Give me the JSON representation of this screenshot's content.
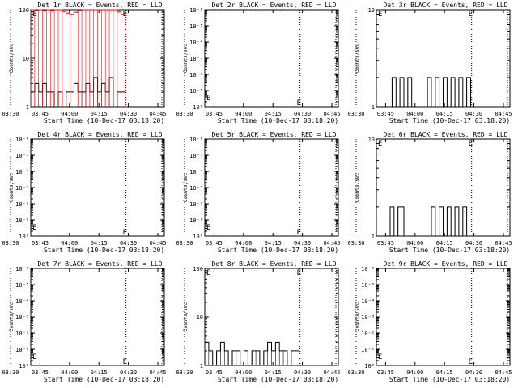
{
  "ylabel": "Counts/sec",
  "xlabel": "Start Time (10-Dec-17 03:18:20)",
  "x_ticks": [
    "03:30",
    "03:45",
    "04:00",
    "04:15",
    "04:30",
    "04:45"
  ],
  "marker_label": "E",
  "colors": {
    "events": "#000000",
    "lld": "#ff0000",
    "background": "#ffffff"
  },
  "chart_data": [
    {
      "type": "line",
      "title": "Det 1r BLACK = Events, RED = LLD",
      "xlabel": "Start Time (10-Dec-17 03:18:20)",
      "ylabel": "Counts/sec",
      "yscale": "log",
      "ylim": [
        1,
        100
      ],
      "y_ticks": [
        "1",
        "10",
        "100"
      ],
      "xlim_min": [
        22,
        90
      ],
      "x_ticks_min": [
        11.7,
        26.7,
        41.7,
        56.7,
        71.7,
        86.7
      ],
      "event_marker_min": 70.5,
      "series": [
        {
          "name": "BLACK = Events",
          "x": [
            22,
            24,
            26,
            28,
            30,
            32,
            34,
            36,
            38,
            40,
            42,
            44,
            46,
            48,
            50,
            52,
            54,
            56,
            58,
            60,
            62,
            64,
            66,
            68,
            70
          ],
          "y": [
            2,
            3,
            2,
            3,
            2,
            2,
            1,
            2,
            1,
            2,
            2,
            3,
            2,
            2,
            3,
            2,
            4,
            2,
            3,
            2,
            4,
            1,
            2,
            2,
            1
          ]
        },
        {
          "name": "RED = LLD",
          "x": [
            22,
            24,
            26,
            28,
            30,
            32,
            34,
            36,
            38,
            40,
            42,
            44,
            46,
            48,
            50,
            52,
            54,
            56,
            58,
            60,
            62,
            64,
            66,
            68,
            70
          ],
          "y": [
            100,
            95,
            100,
            96,
            100,
            98,
            100,
            100,
            92,
            85,
            80,
            88,
            95,
            100,
            100,
            100,
            100,
            100,
            100,
            100,
            100,
            100,
            90,
            80,
            85
          ]
        }
      ]
    },
    {
      "type": "line",
      "title": "Det 2r BLACK = Events, RED = LLD",
      "xlabel": "Start Time (10-Dec-17 03:18:20)",
      "ylabel": "Counts/sec",
      "yscale": "log",
      "ylim": [
        1,
        1000000
      ],
      "y_ticks": [
        "10⁰",
        "10⁻¹",
        "10⁻²",
        "10⁻³",
        "10⁻⁴",
        "10⁻⁵",
        "10⁻⁶"
      ],
      "xlim_min": [
        22,
        90
      ],
      "x_ticks_min": [
        11.7,
        26.7,
        41.7,
        56.7,
        71.7,
        86.7
      ],
      "event_marker_min": 70.5,
      "series": []
    },
    {
      "type": "line",
      "title": "Det 3r BLACK = Events, RED = LLD",
      "xlabel": "Start Time (10-Dec-17 03:18:20)",
      "ylabel": "Counts/sec",
      "yscale": "log",
      "ylim": [
        1,
        10
      ],
      "y_ticks": [
        "1",
        "10"
      ],
      "xlim_min": [
        22,
        90
      ],
      "x_ticks_min": [
        11.7,
        26.7,
        41.7,
        56.7,
        71.7,
        86.7
      ],
      "event_marker_min": 70.5,
      "series": [
        {
          "name": "BLACK = Events",
          "x": [
            22,
            25,
            28,
            30,
            32,
            34,
            36,
            38,
            40,
            42,
            44,
            46,
            48,
            50,
            52,
            54,
            56,
            58,
            60,
            62,
            64,
            66,
            68,
            70
          ],
          "y": [
            1,
            1,
            1,
            2,
            1,
            2,
            1,
            2,
            1,
            1,
            1,
            1,
            2,
            1,
            2,
            1,
            2,
            1,
            2,
            1,
            2,
            1,
            2,
            1
          ]
        }
      ]
    },
    {
      "type": "line",
      "title": "Det 4r BLACK = Events, RED = LLD",
      "xlabel": "Start Time (10-Dec-17 03:18:20)",
      "ylabel": "Counts/sec",
      "yscale": "log",
      "ylim": [
        1,
        1000000
      ],
      "y_ticks": [
        "10⁰",
        "10⁻¹",
        "10⁻²",
        "10⁻³",
        "10⁻⁴",
        "10⁻⁵",
        "10⁻⁶"
      ],
      "xlim_min": [
        22,
        90
      ],
      "x_ticks_min": [
        11.7,
        26.7,
        41.7,
        56.7,
        71.7,
        86.7
      ],
      "event_marker_min": 70.5,
      "series": []
    },
    {
      "type": "line",
      "title": "Det 5r BLACK = Events, RED = LLD",
      "xlabel": "Start Time (10-Dec-17 03:18:20)",
      "ylabel": "Counts/sec",
      "yscale": "log",
      "ylim": [
        1,
        1000000
      ],
      "y_ticks": [
        "10⁰",
        "10⁻¹",
        "10⁻²",
        "10⁻³",
        "10⁻⁴",
        "10⁻⁵",
        "10⁻⁶"
      ],
      "xlim_min": [
        22,
        90
      ],
      "x_ticks_min": [
        11.7,
        26.7,
        41.7,
        56.7,
        71.7,
        86.7
      ],
      "event_marker_min": 70.5,
      "series": []
    },
    {
      "type": "line",
      "title": "Det 6r BLACK = Events, RED = LLD",
      "xlabel": "Start Time (10-Dec-17 03:18:20)",
      "ylabel": "Counts/sec",
      "yscale": "log",
      "ylim": [
        1,
        10
      ],
      "y_ticks": [
        "1",
        "10"
      ],
      "xlim_min": [
        22,
        90
      ],
      "x_ticks_min": [
        11.7,
        26.7,
        41.7,
        56.7,
        71.7,
        86.7
      ],
      "event_marker_min": 70.5,
      "series": [
        {
          "name": "BLACK = Events",
          "x": [
            22,
            25,
            27,
            29,
            31,
            33,
            36,
            40,
            44,
            48,
            50,
            52,
            54,
            56,
            58,
            60,
            62,
            64,
            66,
            68,
            70
          ],
          "y": [
            1,
            1,
            1,
            2,
            1,
            2,
            1,
            1,
            1,
            1,
            2,
            1,
            2,
            1,
            2,
            1,
            2,
            1,
            2,
            1,
            1
          ]
        }
      ]
    },
    {
      "type": "line",
      "title": "Det 7r BLACK = Events, RED = LLD",
      "xlabel": "Start Time (10-Dec-17 03:18:20)",
      "ylabel": "Counts/sec",
      "yscale": "log",
      "ylim": [
        1,
        1000000
      ],
      "y_ticks": [
        "10⁰",
        "10⁻¹",
        "10⁻²",
        "10⁻³",
        "10⁻⁴",
        "10⁻⁵",
        "10⁻⁶"
      ],
      "xlim_min": [
        22,
        90
      ],
      "x_ticks_min": [
        11.7,
        26.7,
        41.7,
        56.7,
        71.7,
        86.7
      ],
      "event_marker_min": 70.5,
      "series": []
    },
    {
      "type": "line",
      "title": "Det 8r BLACK = Events, RED = LLD",
      "xlabel": "Start Time (10-Dec-17 03:18:20)",
      "ylabel": "Counts/sec",
      "yscale": "log",
      "ylim": [
        1,
        100
      ],
      "y_ticks": [
        "1",
        "10",
        "100"
      ],
      "xlim_min": [
        22,
        90
      ],
      "x_ticks_min": [
        11.7,
        26.7,
        41.7,
        56.7,
        71.7,
        86.7
      ],
      "event_marker_min": 70.5,
      "series": [
        {
          "name": "BLACK = Events",
          "x": [
            22,
            24,
            26,
            28,
            30,
            32,
            34,
            36,
            38,
            40,
            42,
            44,
            46,
            48,
            50,
            52,
            54,
            56,
            58,
            60,
            62,
            64,
            66,
            68,
            70
          ],
          "y": [
            3,
            2,
            1,
            2,
            3,
            2,
            1,
            2,
            2,
            1,
            2,
            1,
            2,
            2,
            1,
            2,
            3,
            2,
            3,
            2,
            2,
            1,
            2,
            2,
            1
          ]
        }
      ]
    },
    {
      "type": "line",
      "title": "Det 9r BLACK = Events, RED = LLD",
      "xlabel": "Start Time (10-Dec-17 03:18:20)",
      "ylabel": "Counts/sec",
      "yscale": "log",
      "ylim": [
        1,
        1000000
      ],
      "y_ticks": [
        "10⁰",
        "10⁻¹",
        "10⁻²",
        "10⁻³",
        "10⁻⁴",
        "10⁻⁵",
        "10⁻⁶"
      ],
      "xlim_min": [
        22,
        90
      ],
      "x_ticks_min": [
        11.7,
        26.7,
        41.7,
        56.7,
        71.7,
        86.7
      ],
      "event_marker_min": 70.5,
      "series": []
    }
  ]
}
